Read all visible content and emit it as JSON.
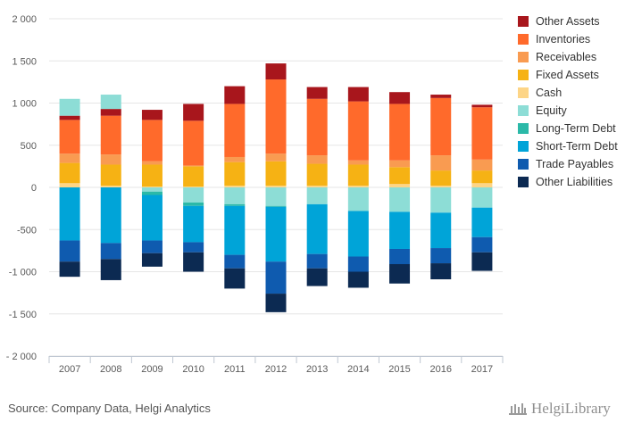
{
  "chart_data": {
    "type": "bar",
    "stacked": true,
    "categories": [
      "2007",
      "2008",
      "2009",
      "2010",
      "2011",
      "2012",
      "2013",
      "2014",
      "2015",
      "2016",
      "2017"
    ],
    "ylim": [
      -2000,
      2000
    ],
    "yticks": [
      -2000,
      -1500,
      -1000,
      -500,
      0,
      500,
      1000,
      1500,
      2000
    ],
    "ytick_labels": [
      "- 2 000",
      "-1 500",
      "-1 000",
      "-500",
      "0",
      "500",
      "1 000",
      "1 500",
      "2 000"
    ],
    "grid": true,
    "legend_position": "right",
    "series": [
      {
        "name": "Cash",
        "color": "#FDD587",
        "values": [
          50,
          20,
          10,
          10,
          20,
          20,
          20,
          20,
          40,
          20,
          50
        ]
      },
      {
        "name": "Fixed Assets",
        "color": "#F6B214",
        "values": [
          240,
          250,
          260,
          240,
          280,
          290,
          260,
          250,
          200,
          180,
          150
        ]
      },
      {
        "name": "Receivables",
        "color": "#F99B51",
        "values": [
          110,
          120,
          40,
          10,
          60,
          90,
          100,
          50,
          80,
          180,
          130
        ]
      },
      {
        "name": "Inventories",
        "color": "#FF6A2B",
        "values": [
          400,
          460,
          490,
          530,
          630,
          880,
          670,
          700,
          670,
          680,
          620
        ]
      },
      {
        "name": "Other Assets",
        "color": "#A8161C",
        "values": [
          50,
          80,
          120,
          200,
          210,
          190,
          140,
          170,
          140,
          40,
          30
        ]
      },
      {
        "name": "Equity",
        "color": "#8DDDD6",
        "values": [
          200,
          170,
          0,
          0,
          0,
          0,
          0,
          0,
          0,
          0,
          0
        ]
      },
      {
        "name": "Equity (negative)",
        "color": "#8DDDD6",
        "values": [
          0,
          0,
          -50,
          -180,
          -200,
          -220,
          -200,
          -280,
          -290,
          -300,
          -240
        ]
      },
      {
        "name": "Long-Term Debt",
        "color": "#2BB9A8",
        "values": [
          0,
          0,
          -40,
          -40,
          -20,
          -10,
          0,
          0,
          0,
          0,
          0
        ]
      },
      {
        "name": "Short-Term Debt",
        "color": "#00A4D8",
        "values": [
          -630,
          -660,
          -540,
          -430,
          -580,
          -650,
          -590,
          -540,
          -440,
          -420,
          -350
        ]
      },
      {
        "name": "Trade Payables",
        "color": "#0F5BAF",
        "values": [
          -250,
          -190,
          -150,
          -120,
          -160,
          -380,
          -170,
          -180,
          -180,
          -180,
          -180
        ]
      },
      {
        "name": "Other Liabilities",
        "color": "#0C2A52",
        "values": [
          -180,
          -250,
          -160,
          -230,
          -240,
          -220,
          -210,
          -190,
          -230,
          -190,
          -220
        ]
      }
    ],
    "legend": [
      {
        "name": "Other Assets",
        "color": "#A8161C"
      },
      {
        "name": "Inventories",
        "color": "#FF6A2B"
      },
      {
        "name": "Receivables",
        "color": "#F99B51"
      },
      {
        "name": "Fixed Assets",
        "color": "#F6B214"
      },
      {
        "name": "Cash",
        "color": "#FDD587"
      },
      {
        "name": "Equity",
        "color": "#8DDDD6"
      },
      {
        "name": "Long-Term Debt",
        "color": "#2BB9A8"
      },
      {
        "name": "Short-Term Debt",
        "color": "#00A4D8"
      },
      {
        "name": "Trade Payables",
        "color": "#0F5BAF"
      },
      {
        "name": "Other Liabilities",
        "color": "#0C2A52"
      }
    ]
  },
  "source_text": "Source: Company Data, Helgi Analytics",
  "logo_text": "HelgiLibrary"
}
